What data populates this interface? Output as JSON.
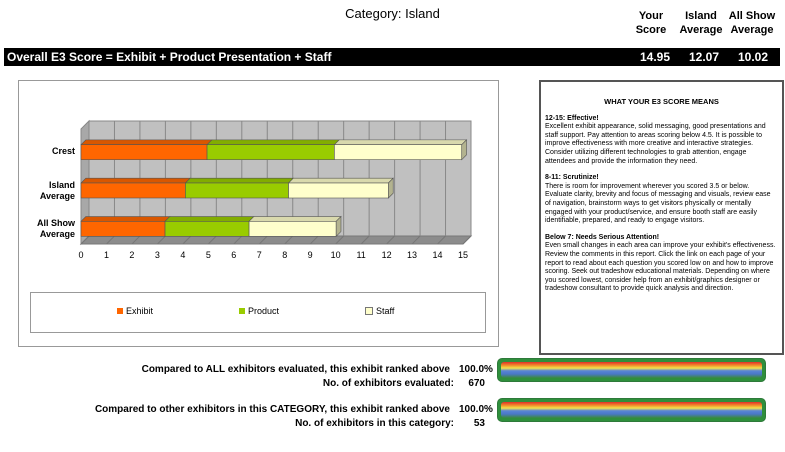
{
  "header": {
    "category_title": "Category: Island",
    "col_your_score": "Your Score",
    "col_island_average": "Island Average",
    "col_all_show_average": "All Show Average"
  },
  "overall": {
    "label": "Overall E3 Score = Exhibit + Product Presentation + Staff",
    "your_score": "14.95",
    "island_average": "12.07",
    "all_show_average": "10.02"
  },
  "chart_data": {
    "type": "bar",
    "orientation": "horizontal",
    "stacked": true,
    "categories": [
      "Crest",
      "Island Average",
      "All Show Average"
    ],
    "series": [
      {
        "name": "Exhibit",
        "color": "#ff6600",
        "values": [
          4.95,
          4.1,
          3.3
        ]
      },
      {
        "name": "Product",
        "color": "#99cc00",
        "values": [
          5.0,
          4.05,
          3.3
        ]
      },
      {
        "name": "Staff",
        "color": "#ffffcc",
        "values": [
          5.0,
          3.92,
          3.42
        ]
      }
    ],
    "xlim": [
      0,
      15
    ],
    "x_ticks": [
      "0",
      "1",
      "2",
      "3",
      "4",
      "5",
      "6",
      "7",
      "8",
      "9",
      "10",
      "11",
      "12",
      "13",
      "14",
      "15"
    ],
    "grid": true,
    "legend_position": "bottom"
  },
  "legend": {
    "exhibit": "Exhibit",
    "product": "Product",
    "staff": "Staff",
    "exhibit_color": "#ff6600",
    "product_color": "#99cc00",
    "staff_color": "#ffffcc"
  },
  "meaning": {
    "title": "WHAT YOUR E3 SCORE MEANS",
    "blocks": [
      {
        "head": "12-15:  Effective!",
        "text": "Excellent exhibit appearance, solid messaging, good presentations and staff support.  Pay attention to areas scoring below 4.5.  It is possible to improve effectiveness with more creative and interactive strategies.  Consider utilizing different technologies to grab attention, engage attendees and provide the information they need."
      },
      {
        "head": "8-11:  Scrutinize!",
        "text": "There is room for improvement wherever you scored 3.5 or below.  Evaluate clarity, brevity and focus of messaging and visuals, review ease of navigation, brainstorm ways to get visitors physically or mentally engaged with your product/service, and ensure booth staff are easily identifiable, prepared, and ready to engage visitors."
      },
      {
        "head": "Below 7: Needs Serious Attention!",
        "text": "Even small changes in each area can improve your exhibit's effectiveness.  Review the comments in this report. Click the link on each page of your report to read about each question you scored low on and how to improve scoring.  Seek out tradeshow educational materials.  Depending on where you scored lowest, consider help from an exhibit/graphics designer or tradeshow consultant to provide quick analysis and direction."
      }
    ]
  },
  "ranking": {
    "all_label": "Compared to ALL exhibitors evaluated, this exhibit ranked above",
    "all_pct": "100.0%",
    "all_count_label": "No. of exhibitors evaluated:",
    "all_count": "670",
    "all_gauge_fraction": 1.0,
    "cat_label": "Compared to other exhibitors in this CATEGORY, this exhibit ranked above",
    "cat_pct": "100.0%",
    "cat_count_label": "No. of exhibitors in this category:",
    "cat_count": "53",
    "cat_gauge_fraction": 1.0
  }
}
